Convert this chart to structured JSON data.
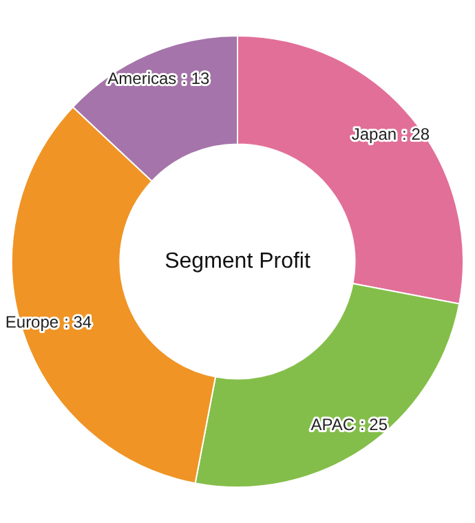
{
  "chart_data": {
    "type": "donut",
    "title": "Segment Profit",
    "categories": [
      "Japan",
      "APAC",
      "Europe",
      "Americas"
    ],
    "values": [
      28,
      25,
      34,
      13
    ],
    "colors": [
      "#e26f98",
      "#84be4a",
      "#ef9425",
      "#a574aa"
    ],
    "value_labels": [
      ": 28",
      ": 25",
      ": 34",
      ": 13"
    ],
    "legend": false
  }
}
